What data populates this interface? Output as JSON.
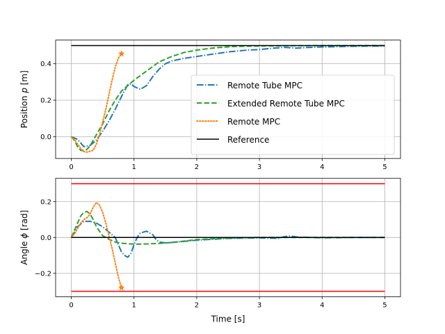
{
  "chart_data": [
    {
      "type": "line",
      "ylabel_prefix": "Position ",
      "ylabel_symbol": "p",
      "ylabel_suffix": " [m]",
      "xlim": [
        -0.25,
        5.25
      ],
      "ylim": [
        -0.12,
        0.53
      ],
      "xticks": [
        0,
        1,
        2,
        3,
        4,
        5
      ],
      "xtick_labels": [
        "0",
        "1",
        "2",
        "3",
        "4",
        "5"
      ],
      "yticks": [
        0.0,
        0.2,
        0.4
      ],
      "ytick_labels": [
        "0.0",
        "0.2",
        "0.4"
      ],
      "grid": true,
      "legend_position": "center-right",
      "series": [
        {
          "name": "Remote Tube MPC",
          "color": "#1f77b4",
          "style": "dashdot",
          "points": [
            [
              0,
              0
            ],
            [
              0.1,
              -0.015
            ],
            [
              0.2,
              -0.055
            ],
            [
              0.3,
              -0.048
            ],
            [
              0.4,
              -0.02
            ],
            [
              0.5,
              0.03
            ],
            [
              0.6,
              0.085
            ],
            [
              0.7,
              0.15
            ],
            [
              0.8,
              0.22
            ],
            [
              0.9,
              0.285
            ],
            [
              0.95,
              0.29
            ],
            [
              1.0,
              0.275
            ],
            [
              1.1,
              0.26
            ],
            [
              1.2,
              0.28
            ],
            [
              1.3,
              0.33
            ],
            [
              1.4,
              0.37
            ],
            [
              1.5,
              0.4
            ],
            [
              1.6,
              0.415
            ],
            [
              1.8,
              0.43
            ],
            [
              2.0,
              0.44
            ],
            [
              2.2,
              0.45
            ],
            [
              2.5,
              0.465
            ],
            [
              2.8,
              0.475
            ],
            [
              3.0,
              0.478
            ],
            [
              3.2,
              0.485
            ],
            [
              3.4,
              0.49
            ],
            [
              3.6,
              0.486
            ],
            [
              3.8,
              0.49
            ],
            [
              4.0,
              0.492
            ],
            [
              4.5,
              0.496
            ],
            [
              5.0,
              0.498
            ]
          ]
        },
        {
          "name": "Extended Remote Tube MPC",
          "color": "#2ca02c",
          "style": "dashed",
          "points": [
            [
              0,
              0
            ],
            [
              0.05,
              -0.02
            ],
            [
              0.1,
              -0.055
            ],
            [
              0.15,
              -0.075
            ],
            [
              0.2,
              -0.078
            ],
            [
              0.25,
              -0.07
            ],
            [
              0.3,
              -0.05
            ],
            [
              0.4,
              0.01
            ],
            [
              0.5,
              0.07
            ],
            [
              0.6,
              0.14
            ],
            [
              0.7,
              0.2
            ],
            [
              0.8,
              0.25
            ],
            [
              0.9,
              0.28
            ],
            [
              1.0,
              0.31
            ],
            [
              1.1,
              0.335
            ],
            [
              1.2,
              0.36
            ],
            [
              1.3,
              0.385
            ],
            [
              1.4,
              0.41
            ],
            [
              1.6,
              0.44
            ],
            [
              1.8,
              0.462
            ],
            [
              2.0,
              0.475
            ],
            [
              2.3,
              0.488
            ],
            [
              2.6,
              0.495
            ],
            [
              3.0,
              0.498
            ],
            [
              4.0,
              0.5
            ],
            [
              5.0,
              0.5
            ]
          ]
        },
        {
          "name": "Remote MPC",
          "color": "#ff7f0e",
          "style": "dotted",
          "marker_end": "star",
          "points": [
            [
              0,
              0
            ],
            [
              0.05,
              -0.015
            ],
            [
              0.1,
              -0.04
            ],
            [
              0.15,
              -0.065
            ],
            [
              0.2,
              -0.082
            ],
            [
              0.25,
              -0.085
            ],
            [
              0.3,
              -0.08
            ],
            [
              0.35,
              -0.075
            ],
            [
              0.4,
              -0.04
            ],
            [
              0.45,
              0.01
            ],
            [
              0.5,
              0.08
            ],
            [
              0.55,
              0.15
            ],
            [
              0.6,
              0.23
            ],
            [
              0.65,
              0.31
            ],
            [
              0.7,
              0.38
            ],
            [
              0.75,
              0.43
            ],
            [
              0.8,
              0.455
            ]
          ]
        },
        {
          "name": "Reference",
          "color": "#000000",
          "style": "solid",
          "points": [
            [
              0,
              0.5
            ],
            [
              5,
              0.5
            ]
          ]
        }
      ]
    },
    {
      "type": "line",
      "xlabel": "Time [s]",
      "ylabel_prefix": "Angle ",
      "ylabel_symbol": "ϕ",
      "ylabel_suffix": " [rad]",
      "xlim": [
        -0.25,
        5.25
      ],
      "ylim": [
        -0.33,
        0.33
      ],
      "xticks": [
        0,
        1,
        2,
        3,
        4,
        5
      ],
      "xtick_labels": [
        "0",
        "1",
        "2",
        "3",
        "4",
        "5"
      ],
      "yticks": [
        -0.2,
        0.0,
        0.2
      ],
      "ytick_labels": [
        "−0.2",
        "0.0",
        "0.2"
      ],
      "grid": true,
      "series": [
        {
          "color": "#1f77b4",
          "style": "dashdot",
          "points": [
            [
              0,
              0
            ],
            [
              0.1,
              0.06
            ],
            [
              0.2,
              0.09
            ],
            [
              0.3,
              0.09
            ],
            [
              0.4,
              0.08
            ],
            [
              0.5,
              0.06
            ],
            [
              0.6,
              0.03
            ],
            [
              0.7,
              0.0
            ],
            [
              0.75,
              -0.04
            ],
            [
              0.8,
              -0.08
            ],
            [
              0.85,
              -0.1
            ],
            [
              0.9,
              -0.11
            ],
            [
              0.95,
              -0.09
            ],
            [
              1.0,
              -0.04
            ],
            [
              1.05,
              0.0
            ],
            [
              1.1,
              0.025
            ],
            [
              1.2,
              0.035
            ],
            [
              1.3,
              0.015
            ],
            [
              1.35,
              -0.01
            ],
            [
              1.4,
              -0.025
            ],
            [
              1.5,
              -0.03
            ],
            [
              1.7,
              -0.025
            ],
            [
              2.0,
              -0.015
            ],
            [
              2.5,
              -0.005
            ],
            [
              3.0,
              -0.002
            ],
            [
              3.3,
              -0.005
            ],
            [
              3.4,
              0.005
            ],
            [
              3.5,
              0.008
            ],
            [
              3.6,
              0.003
            ],
            [
              4.0,
              -0.002
            ],
            [
              4.5,
              0.0
            ],
            [
              5.0,
              0.0
            ]
          ]
        },
        {
          "color": "#2ca02c",
          "style": "dashed",
          "points": [
            [
              0,
              0
            ],
            [
              0.05,
              0.04
            ],
            [
              0.1,
              0.08
            ],
            [
              0.15,
              0.12
            ],
            [
              0.2,
              0.14
            ],
            [
              0.25,
              0.145
            ],
            [
              0.3,
              0.13
            ],
            [
              0.35,
              0.1
            ],
            [
              0.4,
              0.06
            ],
            [
              0.5,
              0.01
            ],
            [
              0.6,
              -0.01
            ],
            [
              0.7,
              -0.025
            ],
            [
              0.8,
              -0.032
            ],
            [
              0.9,
              -0.035
            ],
            [
              1.0,
              -0.037
            ],
            [
              1.2,
              -0.036
            ],
            [
              1.4,
              -0.033
            ],
            [
              1.6,
              -0.028
            ],
            [
              1.8,
              -0.02
            ],
            [
              2.0,
              -0.012
            ],
            [
              2.3,
              -0.006
            ],
            [
              2.6,
              -0.002
            ],
            [
              3.0,
              0.0
            ],
            [
              5.0,
              0.0
            ]
          ]
        },
        {
          "color": "#ff7f0e",
          "style": "dotted",
          "marker_end": "star",
          "points": [
            [
              0,
              0
            ],
            [
              0.05,
              0.02
            ],
            [
              0.1,
              0.05
            ],
            [
              0.15,
              0.08
            ],
            [
              0.2,
              0.1
            ],
            [
              0.25,
              0.11
            ],
            [
              0.3,
              0.13
            ],
            [
              0.35,
              0.17
            ],
            [
              0.4,
              0.195
            ],
            [
              0.45,
              0.18
            ],
            [
              0.5,
              0.14
            ],
            [
              0.55,
              0.08
            ],
            [
              0.6,
              0.01
            ],
            [
              0.65,
              -0.06
            ],
            [
              0.7,
              -0.14
            ],
            [
              0.75,
              -0.22
            ],
            [
              0.8,
              -0.28
            ]
          ]
        },
        {
          "color": "#000000",
          "style": "solid",
          "points": [
            [
              0,
              0
            ],
            [
              5,
              0
            ]
          ]
        },
        {
          "color": "#ff0000",
          "style": "solid",
          "points": [
            [
              0,
              0.3
            ],
            [
              5,
              0.3
            ]
          ]
        },
        {
          "color": "#ff0000",
          "style": "solid",
          "points": [
            [
              0,
              -0.3
            ],
            [
              5,
              -0.3
            ]
          ]
        }
      ]
    }
  ]
}
